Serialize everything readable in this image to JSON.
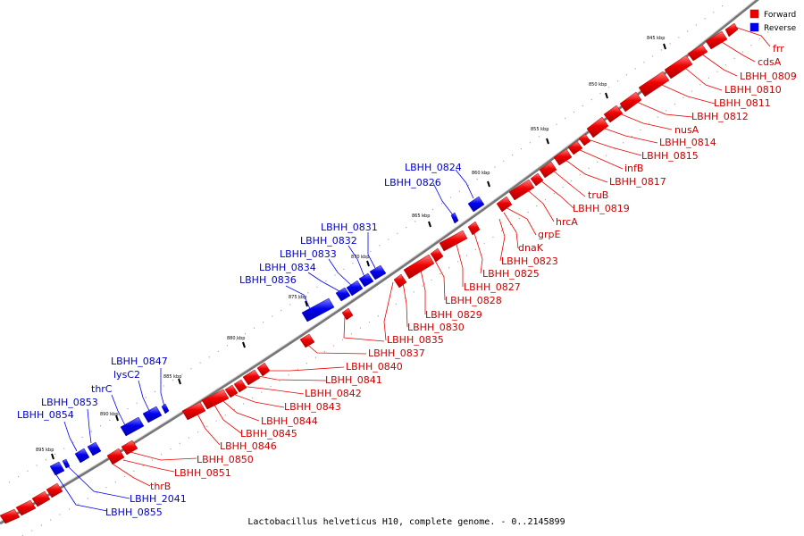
{
  "caption": "Lactobacillus helveticus H10, complete genome. - 0..2145899",
  "legend": {
    "forward": {
      "label": "Forward",
      "color": "#ee0000"
    },
    "reverse": {
      "label": "Reverse",
      "color": "#0000ee"
    }
  },
  "ticks": [
    "845 kbp",
    "850 kbp",
    "855 kbp",
    "860 kbp",
    "865 kbp",
    "870 kbp",
    "875 kbp",
    "880 kbp",
    "885 kbp",
    "890 kbp",
    "895 kbp"
  ],
  "forward_labels": [
    "frr",
    "cdsA",
    "LBHH_0809",
    "LBHH_0810",
    "LBHH_0811",
    "LBHH_0812",
    "nusA",
    "LBHH_0814",
    "LBHH_0815",
    "infB",
    "LBHH_0817",
    "truB",
    "LBHH_0819",
    "hrcA",
    "grpE",
    "dnaK",
    "LBHH_0823",
    "LBHH_0825",
    "LBHH_0827",
    "LBHH_0828",
    "LBHH_0829",
    "LBHH_0830",
    "LBHH_0835",
    "LBHH_0837",
    "LBHH_0840",
    "LBHH_0841",
    "LBHH_0842",
    "LBHH_0843",
    "LBHH_0844",
    "LBHH_0845",
    "LBHH_0846",
    "LBHH_0850",
    "LBHH_0851",
    "thrB"
  ],
  "reverse_labels": [
    "LBHH_0824",
    "LBHH_0826",
    "LBHH_0831",
    "LBHH_0832",
    "LBHH_0833",
    "LBHH_0834",
    "LBHH_0836",
    "LBHH_0847",
    "lysC2",
    "thrC",
    "LBHH_0853",
    "LBHH_0854",
    "LBHH_2041",
    "LBHH_0855"
  ]
}
